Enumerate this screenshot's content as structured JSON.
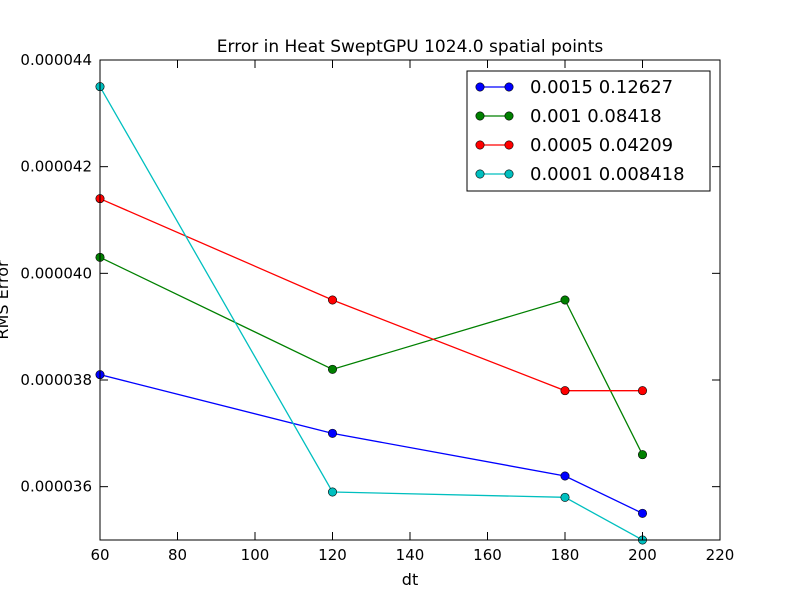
{
  "chart_data": {
    "type": "line",
    "title": "Error in Heat SweptGPU 1024.0 spatial points",
    "xlabel": "dt",
    "ylabel": "RMS Error",
    "xlim": [
      60,
      220
    ],
    "ylim": [
      3.5e-05,
      4.4e-05
    ],
    "xticks": [
      60,
      80,
      100,
      120,
      140,
      160,
      180,
      200,
      220
    ],
    "xtick_labels": [
      "60",
      "80",
      "100",
      "120",
      "140",
      "160",
      "180",
      "200",
      "220"
    ],
    "yticks": [
      3.6e-05,
      3.8e-05,
      4e-05,
      4.2e-05,
      4.4e-05
    ],
    "ytick_labels": [
      "0.000036",
      "0.000038",
      "0.000040",
      "0.000042",
      "0.000044"
    ],
    "legend_position": "top-right",
    "grid": false,
    "x": [
      60,
      120,
      180,
      200
    ],
    "series": [
      {
        "name": "0.0015 0.12627",
        "color": "#0000ff",
        "values": [
          3.81e-05,
          3.7e-05,
          3.62e-05,
          3.55e-05
        ]
      },
      {
        "name": "0.001 0.08418",
        "color": "#008000",
        "values": [
          4.03e-05,
          3.82e-05,
          3.95e-05,
          3.66e-05
        ]
      },
      {
        "name": "0.0005 0.04209",
        "color": "#ff0000",
        "values": [
          4.14e-05,
          3.95e-05,
          3.78e-05,
          3.78e-05
        ]
      },
      {
        "name": "0.0001 0.008418",
        "color": "#00bfbf",
        "values": [
          4.35e-05,
          3.59e-05,
          3.58e-05,
          3.5e-05
        ]
      }
    ]
  }
}
